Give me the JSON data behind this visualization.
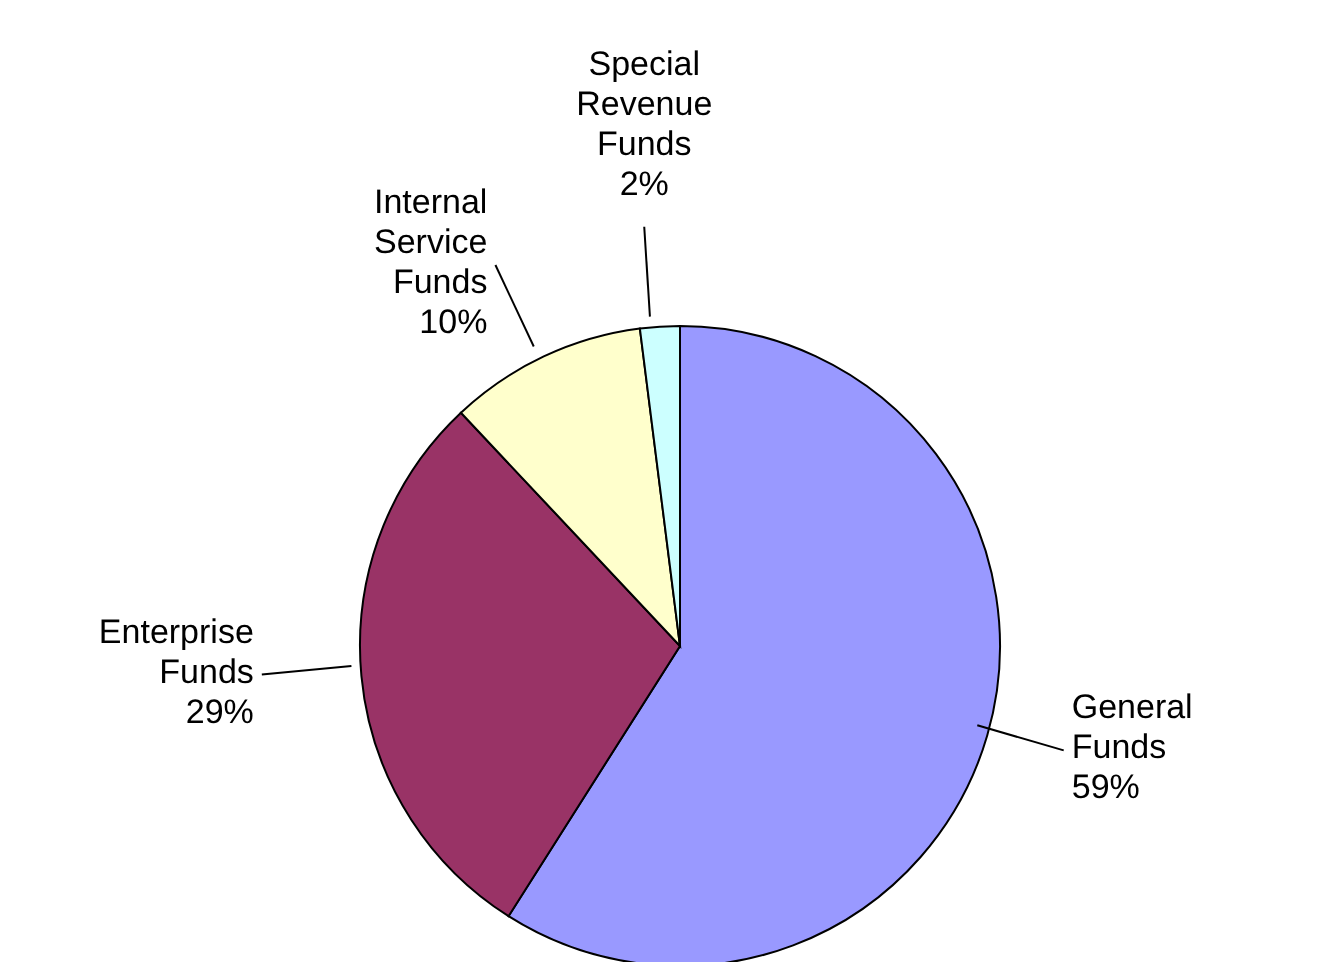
{
  "chart_data": {
    "type": "pie",
    "categories": [
      "General Funds",
      "Enterprise Funds",
      "Internal Service Funds",
      "Special Revenue Funds"
    ],
    "values": [
      59,
      29,
      10,
      2
    ],
    "value_labels": [
      "59%",
      "29%",
      "10%",
      "2%"
    ],
    "colors": [
      "#9999ff",
      "#993366",
      "#ffffcc",
      "#ccffff"
    ],
    "legend": false
  }
}
